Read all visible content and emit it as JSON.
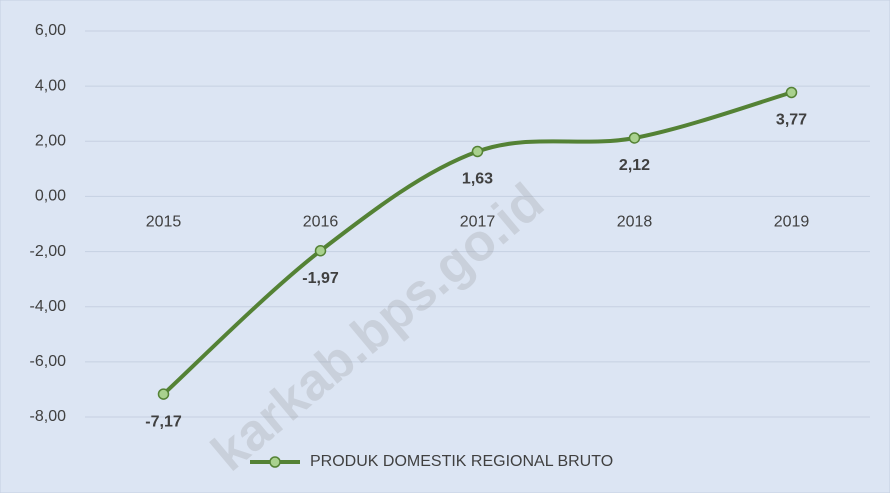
{
  "chart_data": {
    "type": "line",
    "categories": [
      "2015",
      "2016",
      "2017",
      "2018",
      "2019"
    ],
    "series": [
      {
        "name": "PRODUK DOMESTIK REGIONAL BRUTO",
        "color": "#548235",
        "values": [
          -7.17,
          -1.97,
          1.63,
          2.12,
          3.77
        ],
        "value_labels": [
          "-7,17",
          "-1,97",
          "1,63",
          "2,12",
          "3,77"
        ]
      }
    ],
    "ylim": [
      -8,
      6
    ],
    "yticks": [
      {
        "value": -8,
        "label": "-8,00"
      },
      {
        "value": -6,
        "label": "-6,00"
      },
      {
        "value": -4,
        "label": "-4,00"
      },
      {
        "value": -2,
        "label": "-2,00"
      },
      {
        "value": 0,
        "label": "0,00"
      },
      {
        "value": 2,
        "label": "2,00"
      },
      {
        "value": 4,
        "label": "4,00"
      },
      {
        "value": 6,
        "label": "6,00"
      }
    ],
    "grid": true,
    "smooth": true,
    "legend": "bottom",
    "watermark": "karkab.bps.go.id"
  }
}
